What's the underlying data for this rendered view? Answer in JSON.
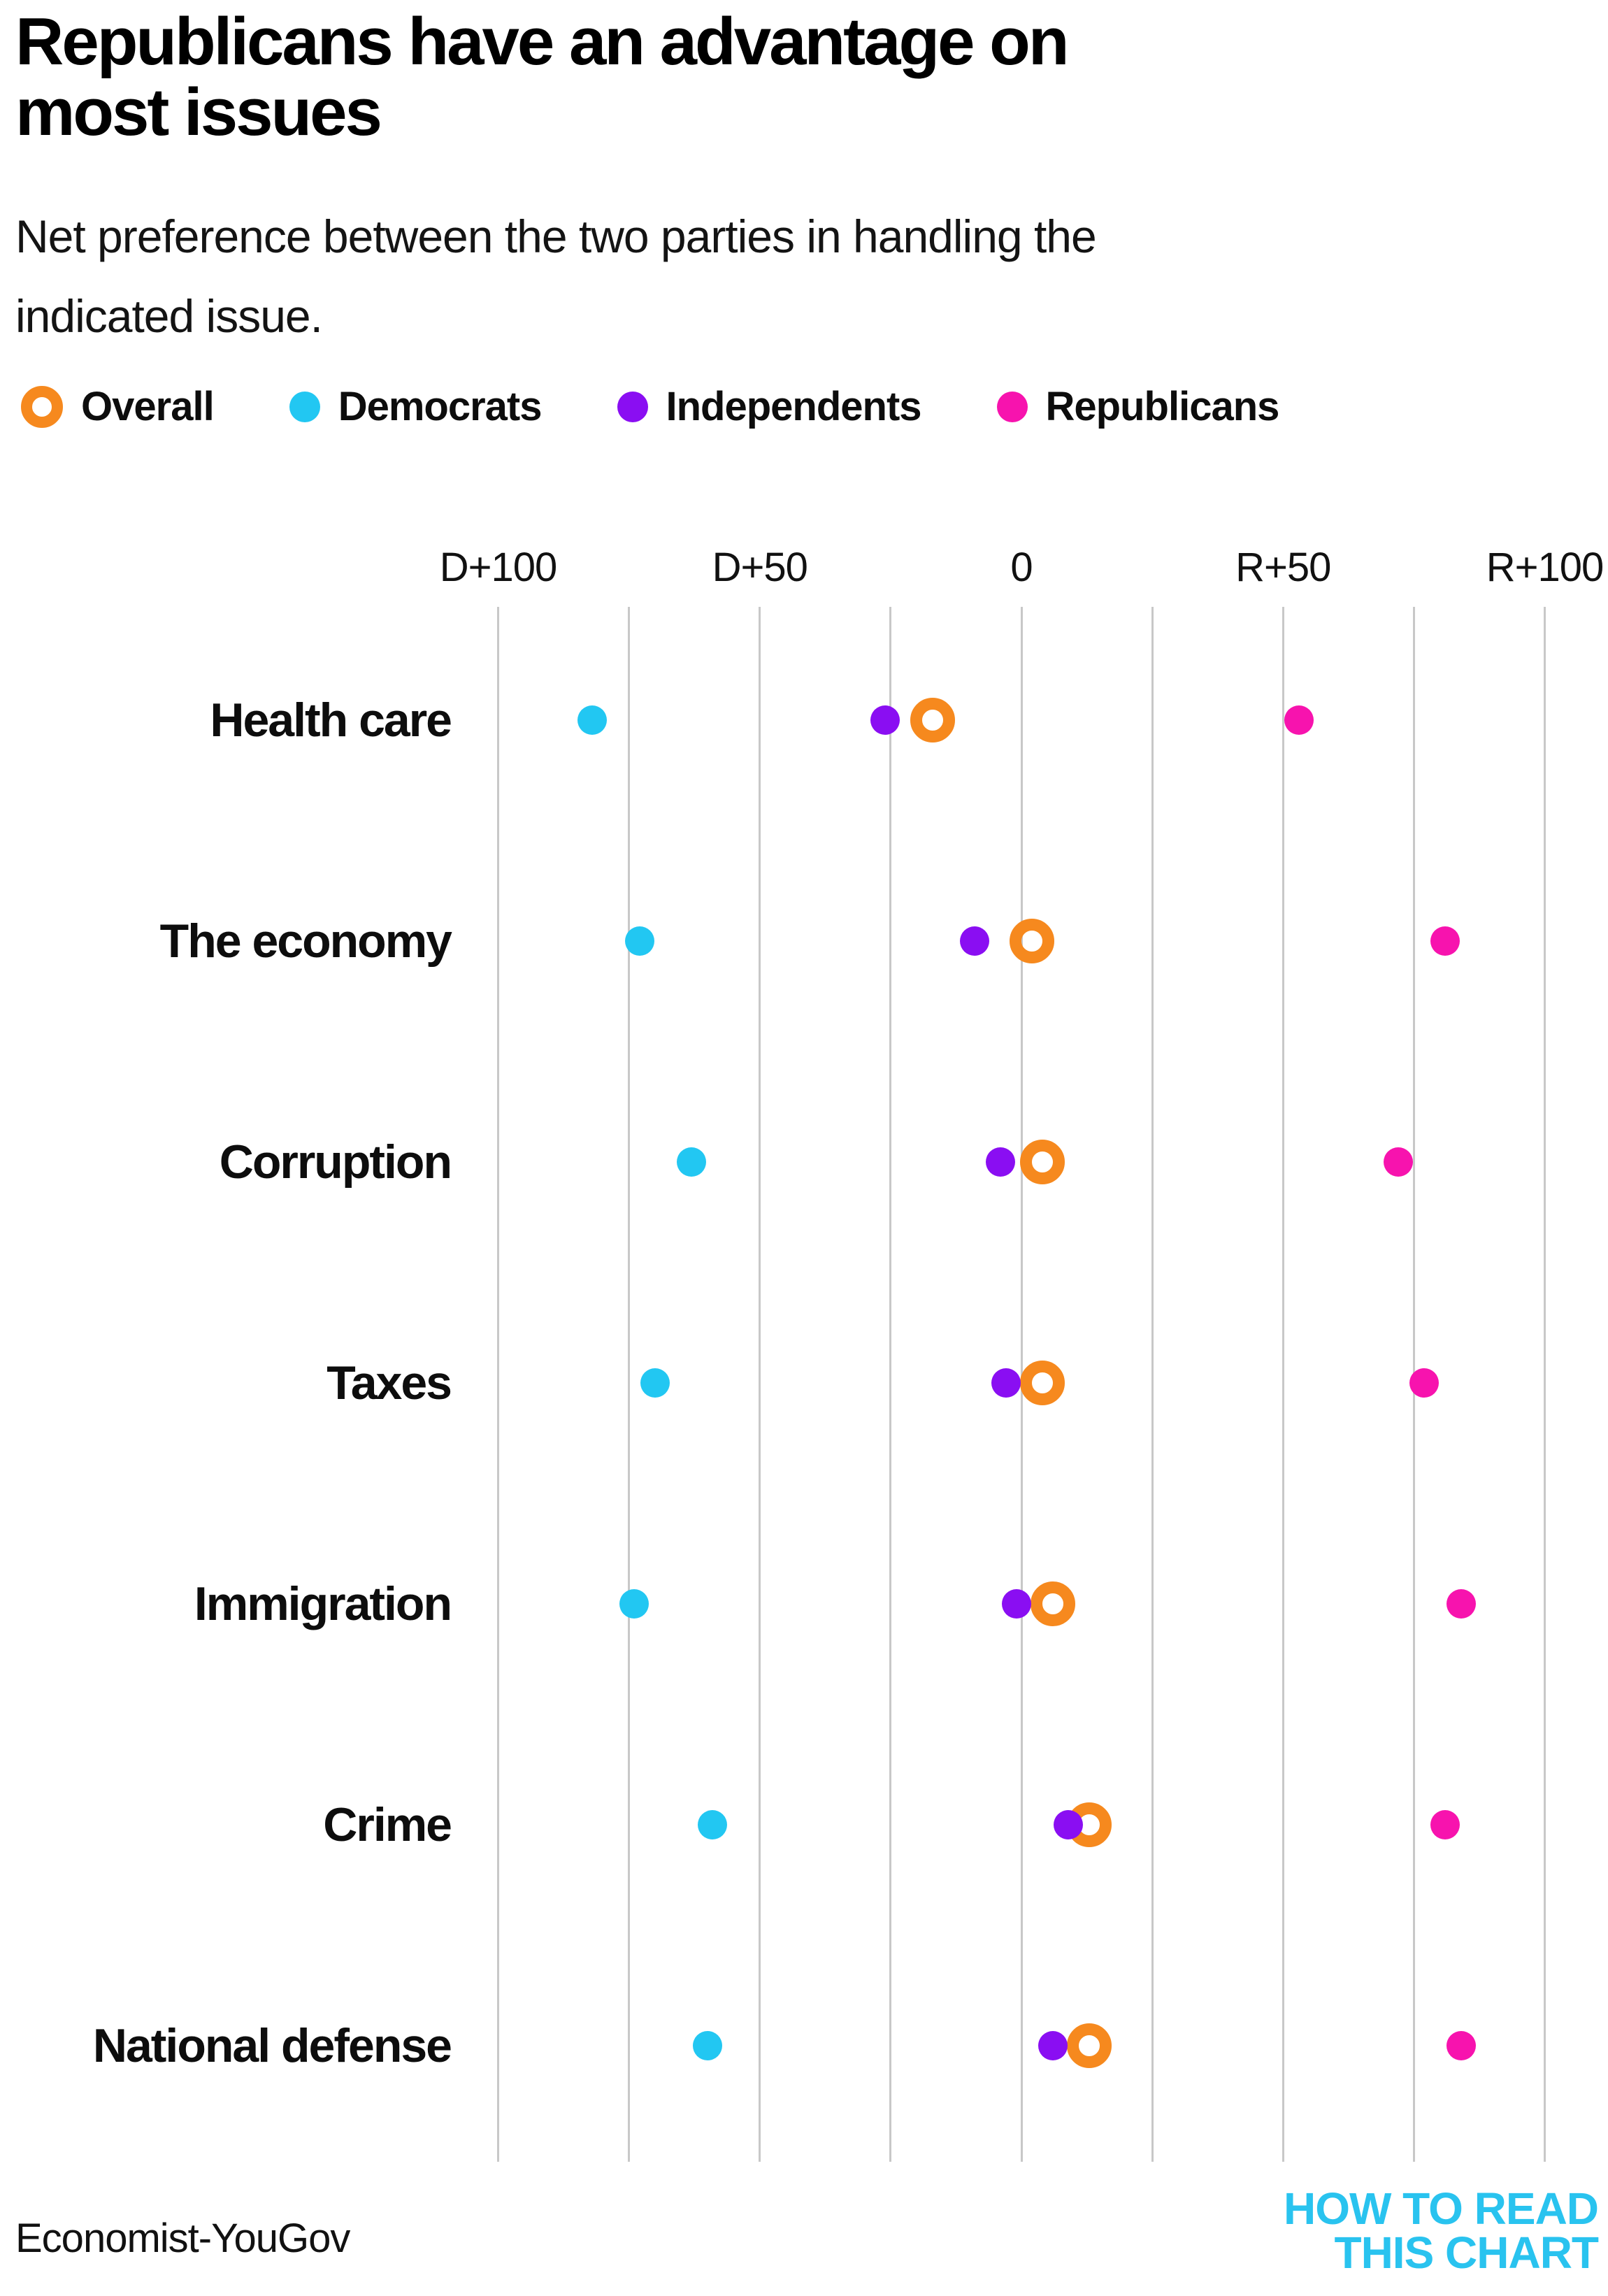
{
  "header": {
    "title": "Republicans have an advantage on most issues",
    "title_lines": [
      "Republicans have an advantage on",
      "most issues"
    ],
    "subtitle": "Net preference between the two parties in handling the indicated issue.",
    "subtitle_lines": [
      "Net preference between the two parties in handling the",
      "indicated issue."
    ]
  },
  "legend": {
    "items": [
      {
        "label": "Overall",
        "color": "#f6891e",
        "marker": "ring"
      },
      {
        "label": "Democrats",
        "color": "#22c7f2",
        "marker": "dot"
      },
      {
        "label": "Independents",
        "color": "#8a0ef2",
        "marker": "dot"
      },
      {
        "label": "Republicans",
        "color": "#f713ae",
        "marker": "dot"
      }
    ]
  },
  "chart_data": {
    "type": "scatter",
    "title": "Republicans have an advantage on most issues",
    "subtitle": "Net preference between the two parties in handling the indicated issue.",
    "value_convention": "negative = Democratic advantage (D+), positive = Republican advantage (R+)",
    "x_axis": {
      "range": [
        -100,
        100
      ],
      "gridline_step": 25,
      "zero_line": true,
      "ticks": [
        {
          "label": "D+100",
          "value": -100
        },
        {
          "label": "D+50",
          "value": -50
        },
        {
          "label": "0",
          "value": 0
        },
        {
          "label": "R+50",
          "value": 50
        },
        {
          "label": "R+100",
          "value": 100
        }
      ]
    },
    "categories": [
      "Health care",
      "The economy",
      "Corruption",
      "Taxes",
      "Immigration",
      "Crime",
      "National defense"
    ],
    "series": [
      {
        "name": "Overall",
        "marker": "ring",
        "color": "#f6891e",
        "values": [
          -17,
          2,
          4,
          4,
          6,
          13,
          13
        ]
      },
      {
        "name": "Democrats",
        "marker": "dot",
        "color": "#22c7f2",
        "values": [
          -82,
          -73,
          -63,
          -70,
          -74,
          -59,
          -60
        ]
      },
      {
        "name": "Independents",
        "marker": "dot",
        "color": "#8a0ef2",
        "values": [
          -26,
          -9,
          -4,
          -3,
          -1,
          9,
          6
        ]
      },
      {
        "name": "Republicans",
        "marker": "dot",
        "color": "#f713ae",
        "values": [
          53,
          81,
          72,
          77,
          84,
          81,
          84
        ]
      }
    ],
    "gridline_color": "#c8c8c8",
    "zero_line_color": "#4b4b4b",
    "legend_position": "top"
  },
  "footer": {
    "source": "Economist-YouGov",
    "logo_line1": "HOW TO READ",
    "logo_line2": "THIS CHART",
    "logo_color": "#29c3ef"
  }
}
